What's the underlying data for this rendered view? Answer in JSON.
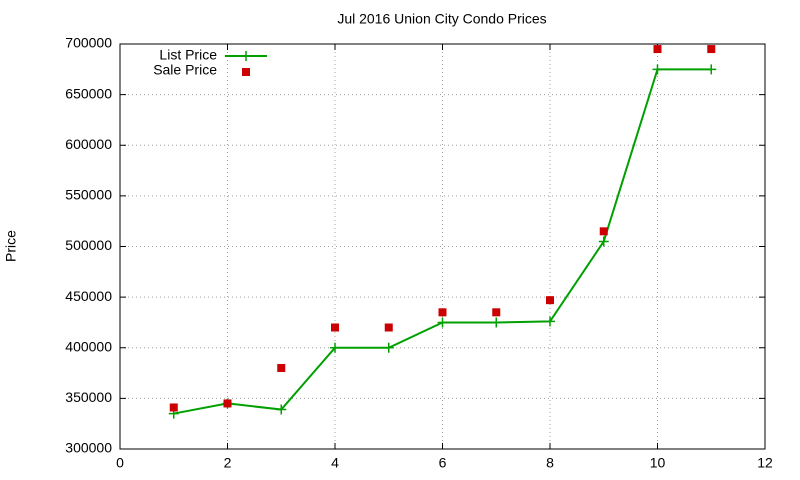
{
  "chart_data": {
    "type": "line",
    "title": "Jul 2016 Union City Condo Prices",
    "y_label": "Price",
    "x": [
      1,
      2,
      3,
      4,
      5,
      6,
      7,
      8,
      9,
      10,
      11
    ],
    "series": [
      {
        "name": "List Price",
        "color": "#00a000",
        "style": "linespoints",
        "values": [
          335000,
          345000,
          339000,
          400000,
          400000,
          425000,
          425000,
          426000,
          505000,
          675000,
          675000
        ]
      },
      {
        "name": "Sale Price",
        "color": "#cc0000",
        "style": "points",
        "values": [
          341000,
          345000,
          380000,
          420000,
          420000,
          435000,
          435000,
          447000,
          515000,
          695000,
          695000
        ]
      }
    ],
    "xlim": [
      0,
      12
    ],
    "xticks": [
      0,
      2,
      4,
      6,
      8,
      10,
      12
    ],
    "ylim": [
      300000,
      700000
    ],
    "yticks": [
      300000,
      350000,
      400000,
      450000,
      500000,
      550000,
      600000,
      650000,
      700000
    ],
    "grid": true,
    "legend": "top-left"
  }
}
